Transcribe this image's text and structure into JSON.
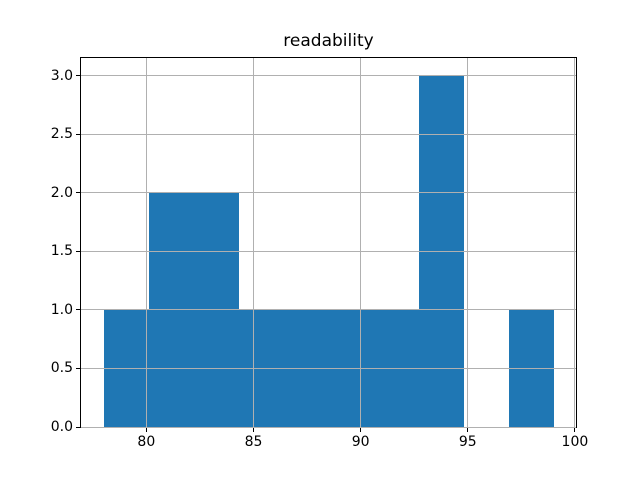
{
  "chart_data": {
    "type": "bar",
    "subtype": "histogram",
    "title": "readability",
    "xlabel": "",
    "ylabel": "",
    "bin_edges": [
      78.0,
      80.1,
      82.2,
      84.3,
      86.4,
      88.5,
      90.6,
      92.7,
      94.8,
      96.9,
      99.0
    ],
    "counts": [
      1,
      2,
      2,
      1,
      1,
      1,
      1,
      3,
      0,
      1
    ],
    "xlim": [
      76.95,
      100.05
    ],
    "ylim": [
      0,
      3.15
    ],
    "xticks": [
      80,
      85,
      90,
      95,
      100
    ],
    "xtick_labels": [
      "80",
      "85",
      "90",
      "95",
      "100"
    ],
    "yticks": [
      0.0,
      0.5,
      1.0,
      1.5,
      2.0,
      2.5,
      3.0
    ],
    "ytick_labels": [
      "0.0",
      "0.5",
      "1.0",
      "1.5",
      "2.0",
      "2.5",
      "3.0"
    ],
    "grid": true,
    "grid_over_bars": true,
    "bar_color": "#1f77b4",
    "grid_color": "#b0b0b0",
    "spine_color": "#000000",
    "background_color": "#ffffff",
    "legend_position": "none"
  }
}
